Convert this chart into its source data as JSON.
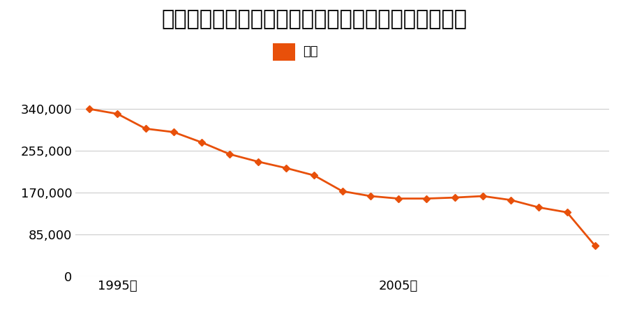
{
  "title": "千葉県市川市大野町２丁目１８７５番２７の地価推移",
  "legend_label": "価格",
  "line_color": "#e8500a",
  "marker_color": "#e8500a",
  "background_color": "#ffffff",
  "years": [
    1994,
    1995,
    1996,
    1997,
    1998,
    1999,
    2000,
    2001,
    2002,
    2003,
    2004,
    2005,
    2006,
    2007,
    2008,
    2009,
    2010,
    2011,
    2012
  ],
  "values": [
    340000,
    330000,
    300000,
    293000,
    272000,
    248000,
    233000,
    220000,
    205000,
    173000,
    163000,
    158000,
    158000,
    160000,
    163000,
    155000,
    140000,
    130000,
    62000
  ],
  "ylim": [
    0,
    370000
  ],
  "yticks": [
    0,
    85000,
    170000,
    255000,
    340000
  ],
  "xtick_labels": [
    "1995年",
    "2005年"
  ],
  "xtick_positions": [
    1995,
    2005
  ],
  "grid_color": "#cccccc",
  "title_fontsize": 22,
  "legend_fontsize": 13,
  "tick_fontsize": 13
}
